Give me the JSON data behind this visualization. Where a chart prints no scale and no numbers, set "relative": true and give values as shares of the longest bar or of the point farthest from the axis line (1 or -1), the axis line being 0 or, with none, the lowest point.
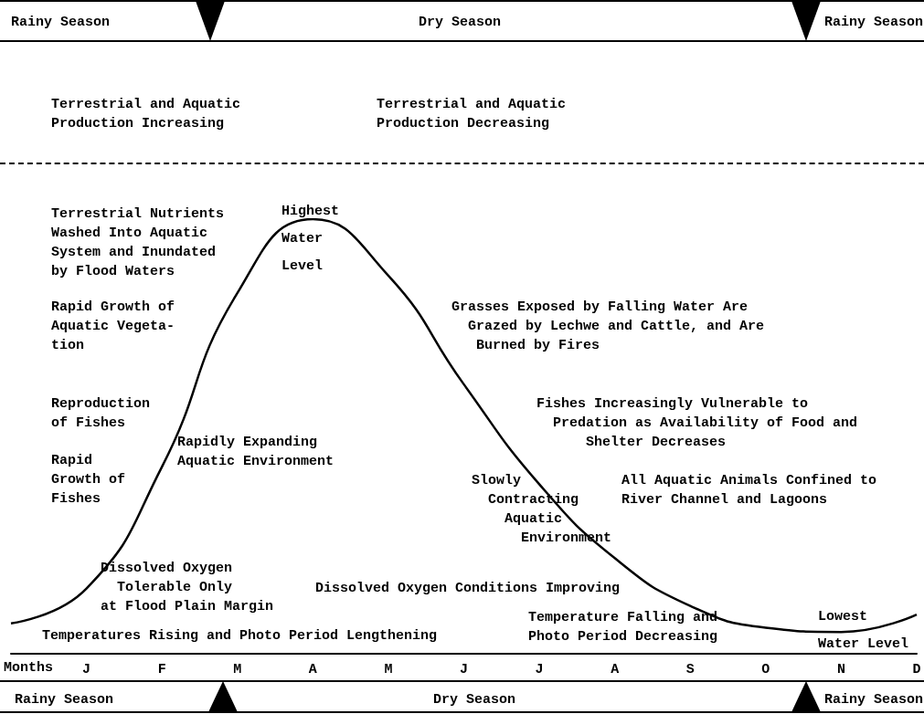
{
  "chart_data": {
    "type": "line",
    "relative": true,
    "xlabel": "Months",
    "categories": [
      null,
      "J",
      "F",
      "M",
      "A",
      "M",
      "J",
      "J",
      "A",
      "S",
      "O",
      "N",
      "D"
    ],
    "series": [
      {
        "color": "#000000",
        "values": [
          0.07,
          0.15,
          0.43,
          0.83,
          1.0,
          0.87,
          0.62,
          0.39,
          0.22,
          0.11,
          0.06,
          0.05,
          0.09
        ]
      }
    ],
    "marker": "none",
    "line_style": "solid",
    "grid": false,
    "annotations": [
      "Rainy Season",
      "Dry Season",
      "Rainy Season",
      "Terrestrial and Aquatic\nProduction Increasing",
      "Terrestrial and Aquatic\nProduction Decreasing",
      "Terrestrial Nutrients\nWashed Into Aquatic\nSystem and Inundated\nby Flood Waters",
      "Highest\nWater\nLevel",
      "Rapid Growth of\nAquatic Vegeta-\ntion",
      "Grasses Exposed by Falling Water Are\n  Grazed by Lechwe and Cattle, and Are\n   Burned by Fires",
      "Reproduction\nof Fishes",
      "Fishes Increasingly Vulnerable to\n  Predation as Availability of Food and\n      Shelter Decreases",
      "Rapidly Expanding\nAquatic Environment",
      "Rapid\nGrowth of\nFishes",
      "Slowly\n  Contracting\n    Aquatic\n      Environment",
      "All Aquatic Animals Confined to\nRiver Channel and Lagoons",
      "Dissolved Oxygen\n  Tolerable Only\nat Flood Plain Margin",
      "Dissolved Oxygen Conditions Improving",
      "Lowest\nWater Level",
      "Temperatures Rising and Photo Period Lengthening",
      "Temperature Falling and\nPhoto Period Decreasing",
      "Rainy Season",
      "Dry Season",
      "Rainy Season"
    ]
  }
}
